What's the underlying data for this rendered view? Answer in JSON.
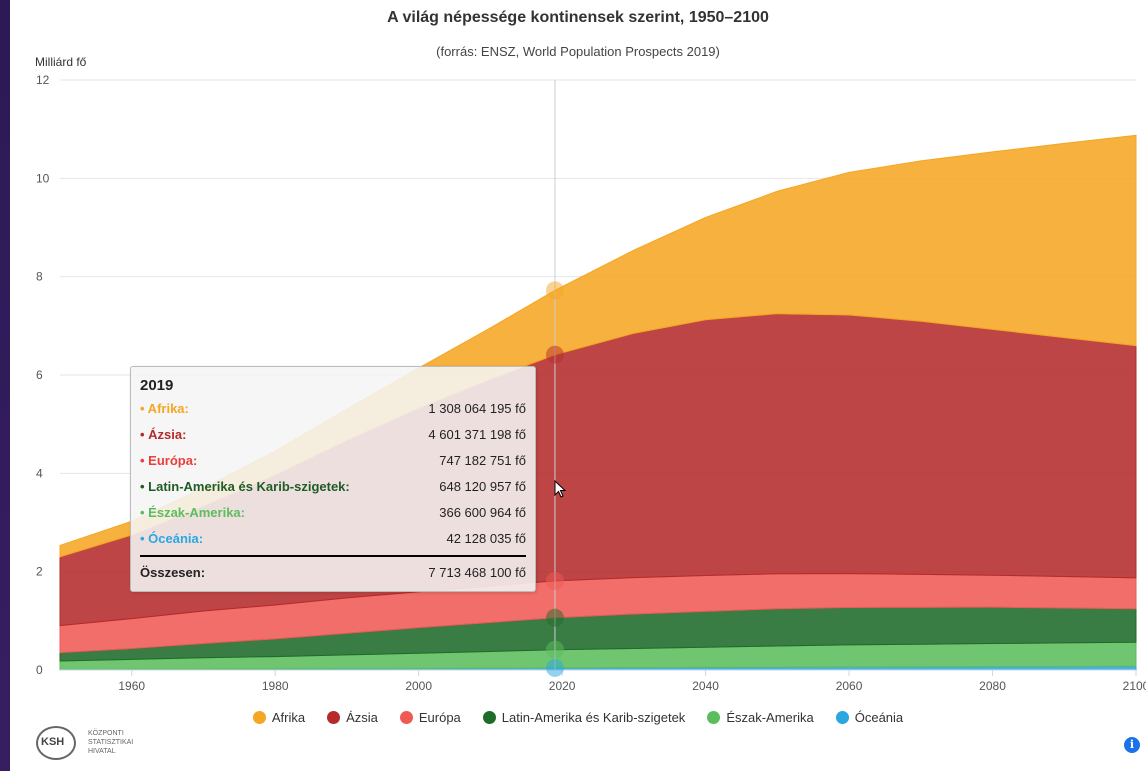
{
  "chart_data": {
    "type": "area",
    "stacked": true,
    "title": "A világ népessége kontinensek szerint, 1950–2100",
    "subtitle": "(forrás: ENSZ, World Population Prospects 2019)",
    "ylabel": "Milliárd fő",
    "xlabel": "",
    "ylim": [
      0,
      12
    ],
    "xlim": [
      1950,
      2100
    ],
    "yticks": [
      0,
      2,
      4,
      6,
      8,
      10,
      12
    ],
    "xticks": [
      1960,
      1980,
      2000,
      2020,
      2040,
      2060,
      2080,
      2100
    ],
    "grid": true,
    "legend_position": "bottom",
    "x": [
      1950,
      1960,
      1970,
      1980,
      1990,
      2000,
      2010,
      2019,
      2030,
      2040,
      2050,
      2060,
      2070,
      2080,
      2090,
      2100
    ],
    "series": [
      {
        "name": "Óceánia",
        "color": "#2aa7e0",
        "values": [
          0.013,
          0.016,
          0.02,
          0.023,
          0.027,
          0.031,
          0.037,
          0.042,
          0.048,
          0.053,
          0.057,
          0.061,
          0.064,
          0.068,
          0.071,
          0.075
        ]
      },
      {
        "name": "Észak-Amerika",
        "color": "#5cbd5c",
        "values": [
          0.17,
          0.2,
          0.23,
          0.25,
          0.28,
          0.31,
          0.34,
          0.37,
          0.39,
          0.41,
          0.43,
          0.45,
          0.46,
          0.47,
          0.48,
          0.49
        ]
      },
      {
        "name": "Latin-Amerika és Karib-szigetek",
        "color": "#1f6b2a",
        "values": [
          0.17,
          0.22,
          0.29,
          0.36,
          0.44,
          0.52,
          0.59,
          0.65,
          0.7,
          0.73,
          0.76,
          0.76,
          0.75,
          0.74,
          0.71,
          0.68
        ]
      },
      {
        "name": "Európa",
        "color": "#ef5a55",
        "values": [
          0.55,
          0.61,
          0.66,
          0.69,
          0.72,
          0.73,
          0.74,
          0.75,
          0.74,
          0.73,
          0.71,
          0.69,
          0.67,
          0.65,
          0.64,
          0.63
        ]
      },
      {
        "name": "Ázsia",
        "color": "#b52b2b",
        "values": [
          1.4,
          1.7,
          2.14,
          2.65,
          3.21,
          3.74,
          4.21,
          4.6,
          4.97,
          5.2,
          5.29,
          5.26,
          5.15,
          5.0,
          4.86,
          4.72
        ]
      },
      {
        "name": "Afrika",
        "color": "#f5a623",
        "values": [
          0.23,
          0.28,
          0.36,
          0.48,
          0.63,
          0.81,
          1.04,
          1.31,
          1.69,
          2.08,
          2.49,
          2.9,
          3.26,
          3.61,
          3.95,
          4.28
        ]
      }
    ],
    "highlight_x": 2019
  },
  "tooltip": {
    "year": "2019",
    "rows": [
      {
        "name": "• Afrika:",
        "value": "1 308 064 195 fő",
        "color": "#f5a623"
      },
      {
        "name": "• Ázsia:",
        "value": "4 601 371 198 fő",
        "color": "#b52b2b"
      },
      {
        "name": "• Európa:",
        "value": "747 182 751 fő",
        "color": "#e8403b"
      },
      {
        "name": "• Latin-Amerika és Karib-szigetek:",
        "value": "648 120 957 fő",
        "color": "#1f5c25"
      },
      {
        "name": "• Észak-Amerika:",
        "value": "366 600 964 fő",
        "color": "#5cbd5c"
      },
      {
        "name": "• Óceánia:",
        "value": "42 128 035 fő",
        "color": "#2aa7e0"
      }
    ],
    "total_label": "Összesen:",
    "total_value": "7 713 468 100 fő"
  },
  "legend": [
    {
      "label": "Afrika",
      "color": "#f5a623"
    },
    {
      "label": "Ázsia",
      "color": "#b52b2b"
    },
    {
      "label": "Európa",
      "color": "#ef5a55"
    },
    {
      "label": "Latin-Amerika és Karib-szigetek",
      "color": "#1f6b2a"
    },
    {
      "label": "Észak-Amerika",
      "color": "#5cbd5c"
    },
    {
      "label": "Óceánia",
      "color": "#2aa7e0"
    }
  ],
  "logo": {
    "abbr": "KSH",
    "line1": "KÖZPONTI",
    "line2": "STATISZTIKAI",
    "line3": "HIVATAL"
  },
  "info_icon": {
    "glyph": "i",
    "icon": "info-icon"
  }
}
